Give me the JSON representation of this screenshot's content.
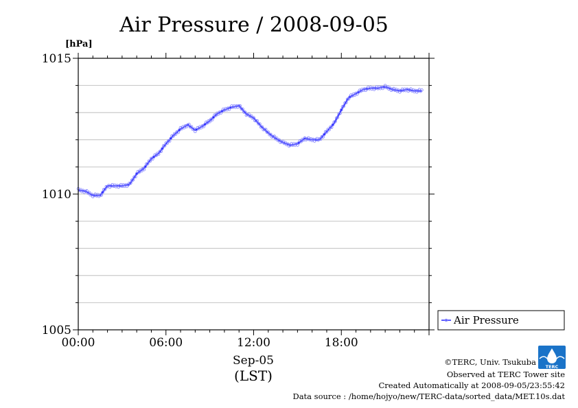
{
  "chart_data": {
    "type": "line",
    "title": "Air Pressure / 2008-09-05",
    "ylabel": "[hPa]",
    "ylim": [
      1005,
      1015
    ],
    "yticks": [
      1005,
      1010,
      1015
    ],
    "ytick_labels": [
      "1005",
      "1010",
      "1015"
    ],
    "minor_y_step": 1,
    "xlim": [
      0,
      24
    ],
    "xticks": [
      0,
      6,
      12,
      18
    ],
    "xtick_labels": [
      "00:00",
      "06:00",
      "12:00",
      "18:00"
    ],
    "xlabel_date": "Sep-05",
    "xlabel_zone": "(LST)",
    "grid": true,
    "legend_position": "right",
    "series": [
      {
        "name": "Air Pressure",
        "color": "#2222ff",
        "x": [
          0,
          0.5,
          1,
          1.5,
          2,
          2.5,
          3,
          3.5,
          4,
          4.5,
          5,
          5.5,
          6,
          6.5,
          7,
          7.5,
          8,
          8.5,
          9,
          9.5,
          10,
          10.5,
          11,
          11.5,
          12,
          12.5,
          13,
          13.5,
          14,
          14.5,
          15,
          15.5,
          16,
          16.5,
          17,
          17.5,
          18,
          18.5,
          19,
          19.5,
          20,
          20.5,
          21,
          21.5,
          22,
          22.5,
          23,
          23.5
        ],
        "values": [
          1010.15,
          1010.1,
          1009.95,
          1009.95,
          1010.3,
          1010.3,
          1010.3,
          1010.35,
          1010.75,
          1010.95,
          1011.3,
          1011.5,
          1011.85,
          1012.15,
          1012.4,
          1012.55,
          1012.35,
          1012.5,
          1012.7,
          1012.95,
          1013.1,
          1013.2,
          1013.25,
          1012.95,
          1012.8,
          1012.5,
          1012.25,
          1012.05,
          1011.9,
          1011.8,
          1011.85,
          1012.05,
          1012.0,
          1012.0,
          1012.3,
          1012.6,
          1013.1,
          1013.55,
          1013.7,
          1013.85,
          1013.9,
          1013.9,
          1013.95,
          1013.85,
          1013.8,
          1013.85,
          1013.8,
          1013.8
        ]
      }
    ]
  },
  "footer": {
    "copyright": "©TERC, Univ. Tsukuba",
    "site": "Observed at TERC Tower site",
    "created": "Created Automatically at 2008-09-05/23:55:42",
    "source": "Data source : /home/hojyo/new/TERC-data/sorted_data/MET.10s.dat"
  },
  "logo": {
    "text": "TERC",
    "color": "#1a73c8"
  }
}
